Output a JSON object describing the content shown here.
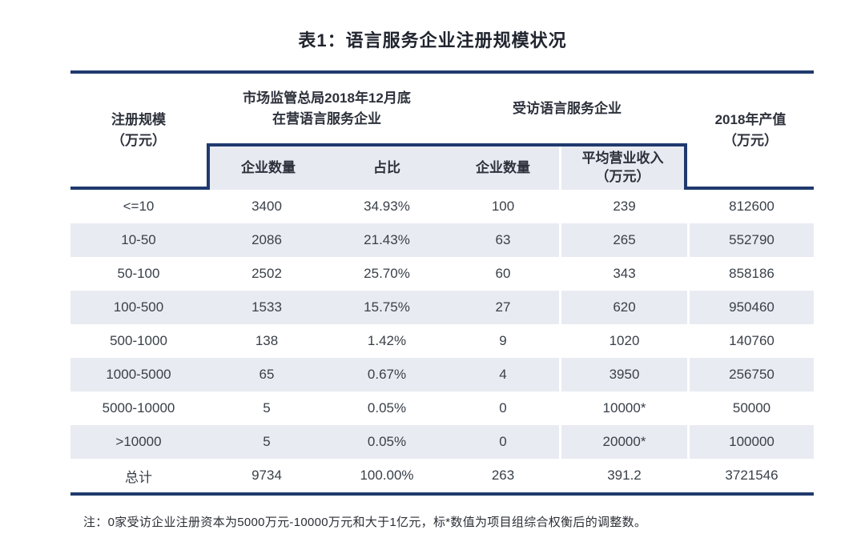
{
  "title": "表1：语言服务企业注册规模状况",
  "colors": {
    "rule_navy": "#1f3a6e",
    "row_shade": "#e9ebf2",
    "subheader_band_bg": "#e8eaf2"
  },
  "header": {
    "col_registered_scale": {
      "line1": "注册规模",
      "line2": "（万元）"
    },
    "group_market_bureau": {
      "line1": "市场监管总局2018年12月底",
      "line2": "在营语言服务企业"
    },
    "group_surveyed": "受访语言服务企业",
    "col_output_2018": {
      "line1": "2018年产值",
      "line2": "（万元）"
    },
    "sub": {
      "enterprise_count_bureau": "企业数量",
      "share": "占比",
      "enterprise_count_surveyed": "企业数量",
      "avg_revenue_line1": "平均营业收入",
      "avg_revenue_line2": "（万元）"
    }
  },
  "rows": [
    {
      "scale": "<=10",
      "count": "3400",
      "share": "34.93%",
      "surveyed_count": "100",
      "avg_revenue": "239",
      "output_2018": "812600"
    },
    {
      "scale": "10-50",
      "count": "2086",
      "share": "21.43%",
      "surveyed_count": "63",
      "avg_revenue": "265",
      "output_2018": "552790"
    },
    {
      "scale": "50-100",
      "count": "2502",
      "share": "25.70%",
      "surveyed_count": "60",
      "avg_revenue": "343",
      "output_2018": "858186"
    },
    {
      "scale": "100-500",
      "count": "1533",
      "share": "15.75%",
      "surveyed_count": "27",
      "avg_revenue": "620",
      "output_2018": "950460"
    },
    {
      "scale": "500-1000",
      "count": "138",
      "share": "1.42%",
      "surveyed_count": "9",
      "avg_revenue": "1020",
      "output_2018": "140760"
    },
    {
      "scale": "1000-5000",
      "count": "65",
      "share": "0.67%",
      "surveyed_count": "4",
      "avg_revenue": "3950",
      "output_2018": "256750"
    },
    {
      "scale": "5000-10000",
      "count": "5",
      "share": "0.05%",
      "surveyed_count": "0",
      "avg_revenue": "10000*",
      "output_2018": "50000"
    },
    {
      "scale": ">10000",
      "count": "5",
      "share": "0.05%",
      "surveyed_count": "0",
      "avg_revenue": "20000*",
      "output_2018": "100000"
    },
    {
      "scale": "总计",
      "count": "9734",
      "share": "100.00%",
      "surveyed_count": "263",
      "avg_revenue": "391.2",
      "output_2018": "3721546"
    }
  ],
  "footnote": "注：0家受访企业注册资本为5000万元-10000万元和大于1亿元，标*数值为项目组综合权衡后的调整数。"
}
